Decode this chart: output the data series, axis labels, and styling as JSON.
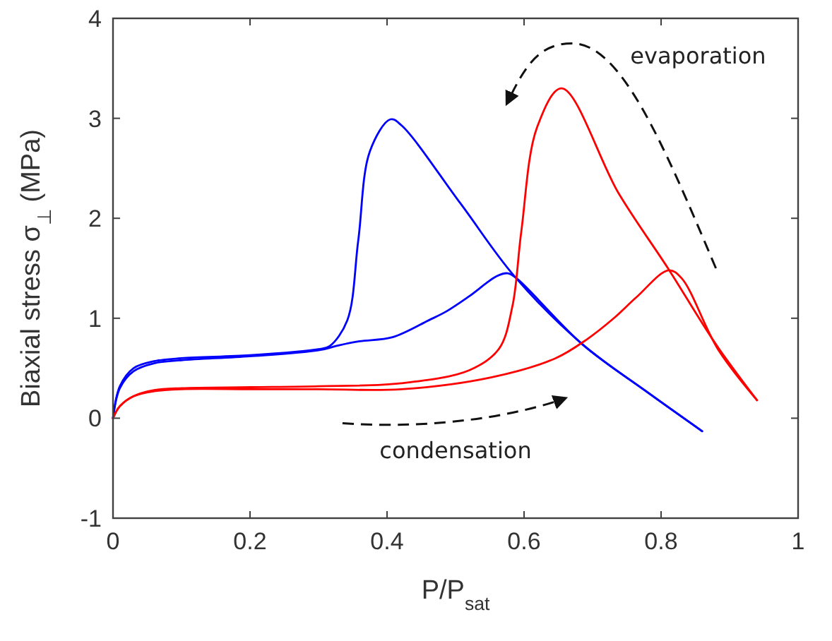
{
  "chart_data": {
    "type": "line",
    "xlabel": "P/P$_{sat}$",
    "ylabel": "Biaxial stress σ$_{⊥}$ (MPa)",
    "xlim": [
      0,
      1
    ],
    "ylim": [
      -1,
      4
    ],
    "xticks": [
      0,
      0.2,
      0.4,
      0.6,
      0.8,
      1
    ],
    "yticks": [
      -1,
      0,
      1,
      2,
      3,
      4
    ],
    "grid": false,
    "line_style": "solid",
    "annotations": [
      "evaporation",
      "condensation"
    ],
    "series": [
      {
        "color": "#0000ff",
        "x": [
          0,
          0.01,
          0.03,
          0.06,
          0.1,
          0.2,
          0.3,
          0.33,
          0.36,
          0.408,
          0.461,
          0.487,
          0.52,
          0.56,
          0.576,
          0.589,
          0.685,
          0.778,
          0.86
        ],
        "values": [
          0,
          0.3,
          0.47,
          0.55,
          0.58,
          0.62,
          0.68,
          0.73,
          0.77,
          0.81,
          0.98,
          1.07,
          1.22,
          1.42,
          1.45,
          1.4,
          0.74,
          0.27,
          -0.13
        ]
      },
      {
        "color": "#0000ff",
        "x": [
          0.86,
          0.778,
          0.685,
          0.586,
          0.507,
          0.421,
          0.405,
          0.375,
          0.358,
          0.342,
          0.316,
          0.3,
          0.2,
          0.1,
          0.06,
          0.03,
          0.01,
          0
        ],
        "values": [
          -0.13,
          0.27,
          0.74,
          1.42,
          2.15,
          2.93,
          2.99,
          2.67,
          1.78,
          0.98,
          0.72,
          0.69,
          0.63,
          0.6,
          0.57,
          0.5,
          0.32,
          0
        ]
      },
      {
        "color": "#ff0000",
        "x": [
          0,
          0.01,
          0.03,
          0.06,
          0.1,
          0.2,
          0.3,
          0.421,
          0.553,
          0.646,
          0.692,
          0.731,
          0.764,
          0.811,
          0.83,
          0.883,
          0.94
        ],
        "values": [
          0,
          0.12,
          0.22,
          0.27,
          0.29,
          0.29,
          0.29,
          0.29,
          0.41,
          0.6,
          0.79,
          1.0,
          1.21,
          1.48,
          1.4,
          0.69,
          0.18
        ]
      },
      {
        "color": "#ff0000",
        "x": [
          0.94,
          0.88,
          0.811,
          0.738,
          0.655,
          0.619,
          0.596,
          0.583,
          0.563,
          0.52,
          0.421,
          0.3,
          0.2,
          0.1,
          0.06,
          0.03,
          0.01,
          0
        ],
        "values": [
          0.18,
          0.74,
          1.49,
          2.25,
          3.3,
          2.91,
          1.87,
          1.12,
          0.69,
          0.48,
          0.35,
          0.32,
          0.31,
          0.3,
          0.28,
          0.22,
          0.12,
          0
        ]
      }
    ]
  }
}
